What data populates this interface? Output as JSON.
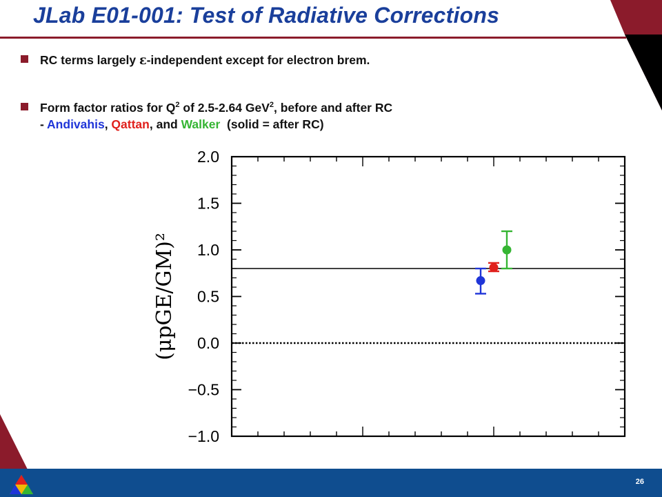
{
  "title": "JLab E01-001: Test of Radiative Corrections",
  "bullets": {
    "b1": {
      "pre": "RC terms largely ",
      "eps": "ε",
      "post": "-independent except for electron brem."
    },
    "b2": {
      "line1_pre": "Form factor ratios for Q",
      "line1_sup1": "2",
      "line1_mid": " of 2.5-2.64 GeV",
      "line1_sup2": "2",
      "line1_post": ", before and after RC",
      "line2_dash": "- ",
      "name1": "Andivahis",
      "comma1": ", ",
      "name2": "Qattan",
      "comma2": ", and ",
      "name3": "Walker",
      "tail": "  (solid = after RC)"
    }
  },
  "page_number": "26",
  "colors": {
    "title": "#1a3f9b",
    "accent": "#8b1b2b",
    "footer": "#0f4d8f",
    "andivahis": "#1f35d8",
    "qattan": "#e0201c",
    "walker": "#35b533"
  },
  "chart_data": {
    "type": "scatter",
    "ylabel": "(μpGE/GM)²",
    "ylim": [
      -1.0,
      2.0
    ],
    "y_ticks": [
      "2.0",
      "1.5",
      "1.0",
      "0.5",
      "0.0",
      "−0.5",
      "−1.0"
    ],
    "reference_lines": [
      {
        "y": 0.8,
        "style": "solid"
      },
      {
        "y": 0.0,
        "style": "dotted"
      }
    ],
    "series": [
      {
        "name": "Andivahis",
        "color": "#1f35d8",
        "y": 0.67,
        "err_low": 0.53,
        "err_high": 0.8
      },
      {
        "name": "Qattan",
        "color": "#e0201c",
        "y": 0.81,
        "err_low": 0.77,
        "err_high": 0.86
      },
      {
        "name": "Walker",
        "color": "#35b533",
        "y": 1.0,
        "err_low": 0.8,
        "err_high": 1.2
      }
    ]
  }
}
